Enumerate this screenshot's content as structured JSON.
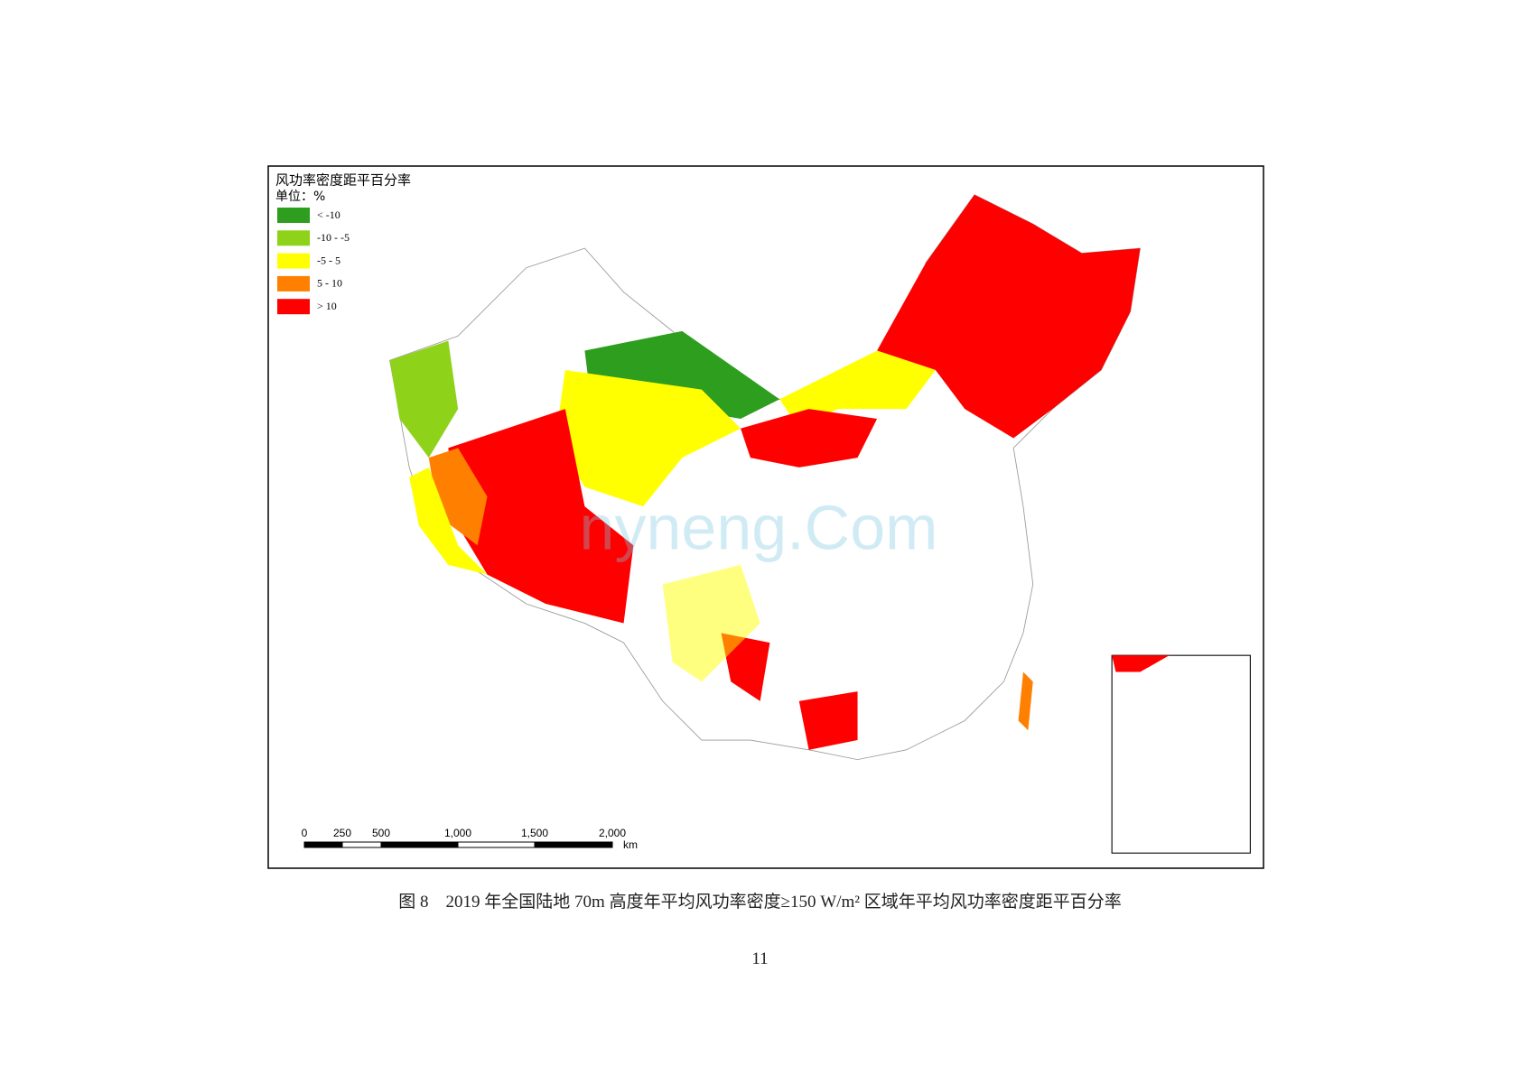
{
  "figure": {
    "legend": {
      "title": "风功率密度距平百分率",
      "unit": "单位：%",
      "items": [
        {
          "label": "< -10",
          "color": "#2e9e1e"
        },
        {
          "label": "-10 - -5",
          "color": "#8fd21a"
        },
        {
          "label": "-5 - 5",
          "color": "#ffff00"
        },
        {
          "label": "5 - 10",
          "color": "#ff8000"
        },
        {
          "label": "> 10",
          "color": "#ff0000"
        }
      ]
    },
    "scale_bar": {
      "labels": [
        "0",
        "250",
        "500",
        "1,000",
        "1,500",
        "2,000"
      ],
      "unit": "km"
    },
    "watermark": "nyneng.Com",
    "caption": "图 8　2019 年全国陆地 70m 高度年平均风功率密度≥150 W/m² 区域年平均风功率密度距平百分率"
  },
  "page_number": "11"
}
